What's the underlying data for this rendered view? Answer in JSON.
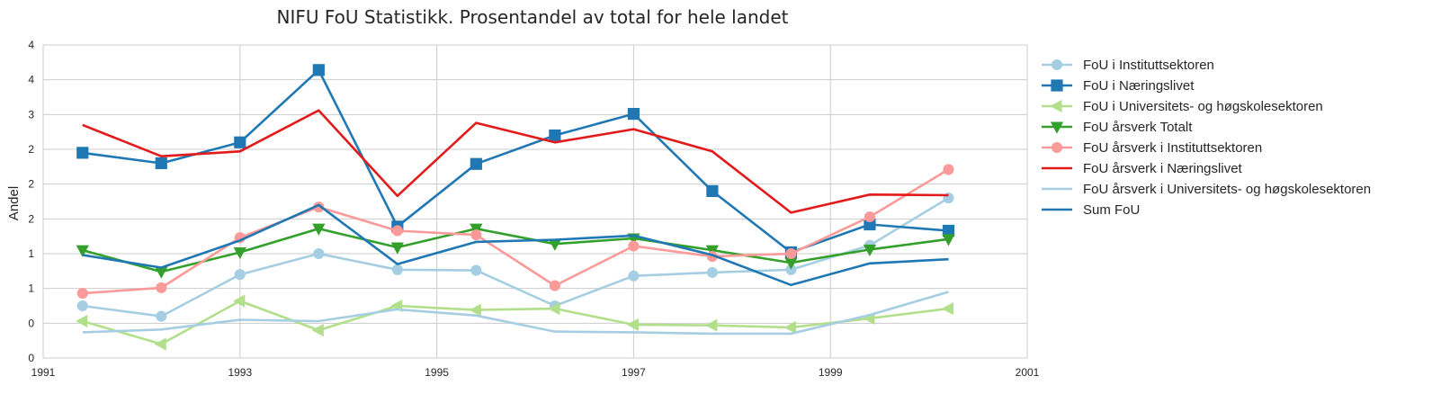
{
  "chart_data": {
    "type": "line",
    "title": "NIFU FoU Statistikk. Prosentandel av total for hele landet",
    "xlabel": "",
    "ylabel": "Andel",
    "xlim": [
      1991,
      2001
    ],
    "ylim": [
      0,
      4.5
    ],
    "x_ticks": [
      "1991",
      "1993",
      "1995",
      "1997",
      "1999",
      "2001"
    ],
    "y_ticks": [
      "0",
      "0",
      "1",
      "1",
      "2",
      "2",
      "2",
      "3",
      "4",
      "4"
    ],
    "grid": true,
    "legend_position": "outside right",
    "x": [
      1991.4,
      1992.2,
      1993.0,
      1993.8,
      1994.6,
      1995.4,
      1996.2,
      1997.0,
      1997.8,
      1998.6,
      1999.4,
      2000.2
    ],
    "series": [
      {
        "name": "FoU i Instituttsektoren",
        "color": "#a6cee3",
        "marker": "circle",
        "values": [
          0.75,
          0.6,
          1.2,
          1.5,
          1.27,
          1.26,
          0.75,
          1.18,
          1.23,
          1.27,
          1.62,
          2.3
        ]
      },
      {
        "name": "FoU i Næringslivet",
        "color": "#1f78b4",
        "marker": "square",
        "values": [
          2.95,
          2.8,
          3.1,
          4.14,
          1.89,
          2.79,
          3.2,
          3.51,
          2.4,
          1.52,
          1.92,
          1.83
        ]
      },
      {
        "name": "FoU i Universitets- og høgskolesektoren",
        "color": "#b2df8a",
        "marker": "triangle-left",
        "values": [
          0.53,
          0.2,
          0.82,
          0.4,
          0.75,
          0.69,
          0.71,
          0.48,
          0.47,
          0.44,
          0.57,
          0.71
        ]
      },
      {
        "name": "FoU årsverk Totalt",
        "color": "#33a02c",
        "marker": "triangle-down",
        "values": [
          1.55,
          1.24,
          1.52,
          1.86,
          1.59,
          1.86,
          1.64,
          1.72,
          1.55,
          1.37,
          1.56,
          1.71
        ]
      },
      {
        "name": "FoU årsverk i Instituttsektoren",
        "color": "#fb9a99",
        "marker": "circle",
        "values": [
          0.93,
          1.01,
          1.73,
          2.17,
          1.83,
          1.77,
          1.04,
          1.61,
          1.46,
          1.5,
          2.03,
          2.71
        ]
      },
      {
        "name": "FoU årsverk i Næringslivet",
        "color": "#e31a1c",
        "marker": "none",
        "values": [
          3.35,
          2.9,
          2.97,
          3.56,
          2.33,
          3.38,
          3.1,
          3.29,
          2.97,
          2.09,
          2.35,
          2.34
        ]
      },
      {
        "name": "FoU årsverk i Universitets- og høgskolesektoren",
        "color": "#a6cee3",
        "marker": "none",
        "values": [
          0.37,
          0.41,
          0.55,
          0.53,
          0.7,
          0.61,
          0.38,
          0.37,
          0.35,
          0.35,
          0.62,
          0.95
        ]
      },
      {
        "name": "Sum FoU",
        "color": "#1f78b4",
        "marker": "none",
        "values": [
          1.48,
          1.3,
          1.69,
          2.2,
          1.35,
          1.67,
          1.7,
          1.76,
          1.48,
          1.05,
          1.36,
          1.42
        ]
      }
    ]
  }
}
